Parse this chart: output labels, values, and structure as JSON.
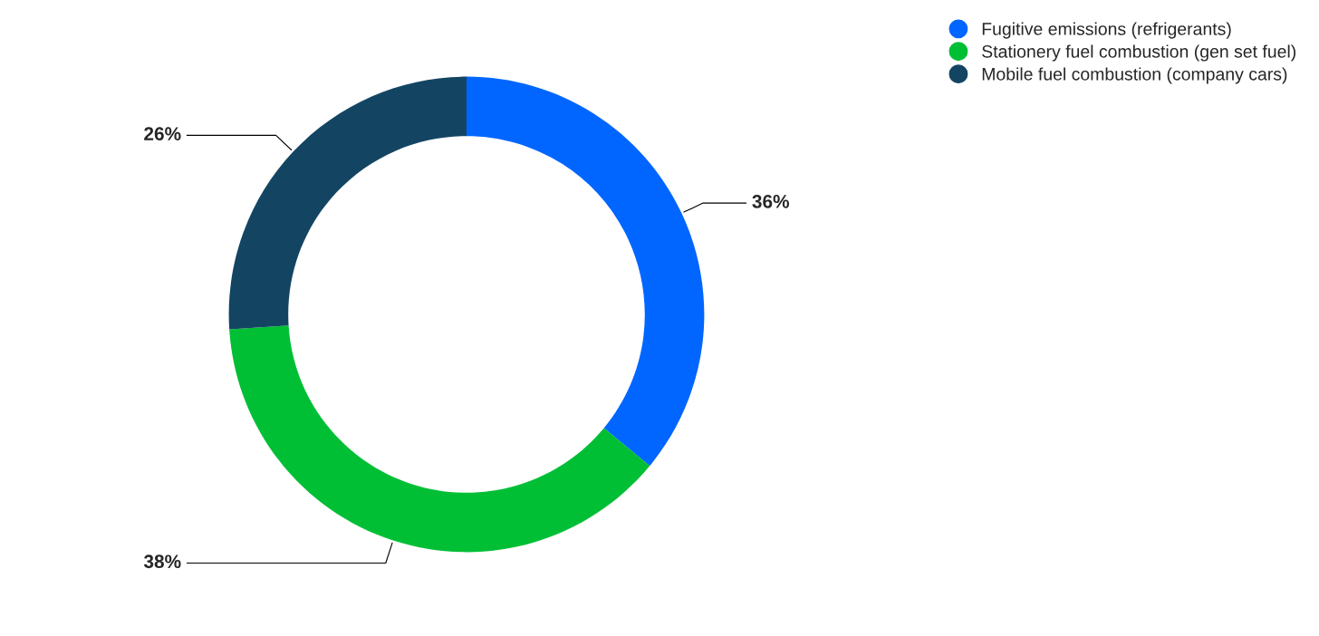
{
  "chart_data": {
    "type": "donut",
    "categories": [
      "Fugitive emissions (refrigerants)",
      "Stationery fuel combustion (gen set fuel)",
      "Mobile fuel combustion (company cars)"
    ],
    "values": [
      36,
      38,
      26
    ],
    "colors": [
      "#0066ff",
      "#00bf35",
      "#134563"
    ],
    "value_labels": [
      "36%",
      "38%",
      "26%"
    ],
    "legend": "top right"
  }
}
